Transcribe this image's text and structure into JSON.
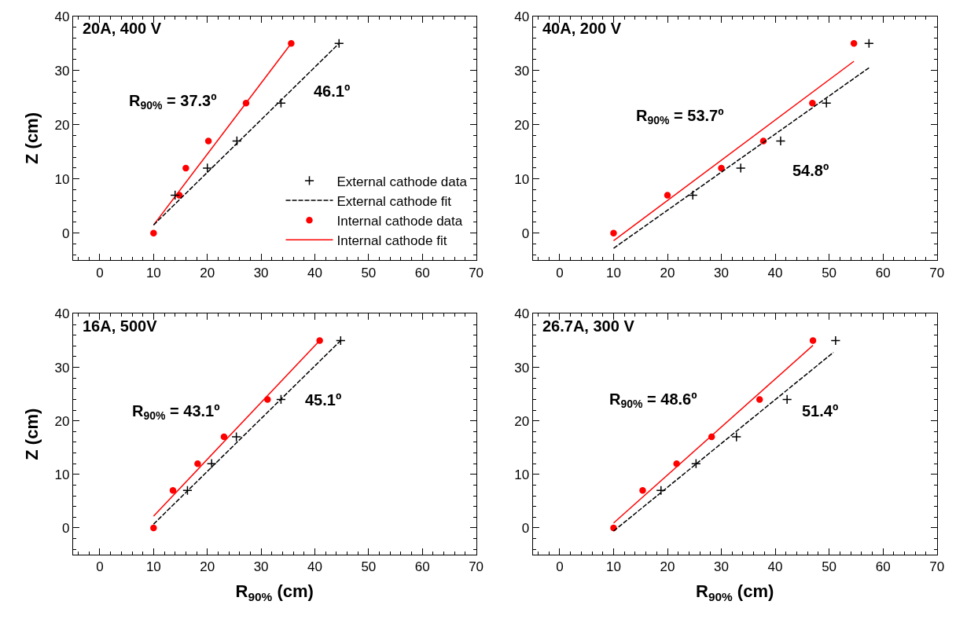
{
  "chart_data": [
    {
      "type": "scatter",
      "ylabel": "Z (cm)",
      "xlim": [
        -5,
        70
      ],
      "ylim": [
        -5,
        40
      ],
      "xticks": [
        0,
        10,
        20,
        30,
        40,
        50,
        60,
        70,
        {
          "value": -4,
          "label": null
        },
        {
          "value": -2,
          "label": null
        },
        {
          "value": 2,
          "label": null
        },
        {
          "value": 4,
          "label": null
        },
        {
          "value": 6,
          "label": null
        },
        {
          "value": 8,
          "label": null
        },
        {
          "value": 12,
          "label": null
        },
        {
          "value": 14,
          "label": null
        },
        {
          "value": 16,
          "label": null
        },
        {
          "value": 18,
          "label": null
        },
        {
          "value": 22,
          "label": null
        },
        {
          "value": 24,
          "label": null
        },
        {
          "value": 26,
          "label": null
        },
        {
          "value": 28,
          "label": null
        },
        {
          "value": 32,
          "label": null
        },
        {
          "value": 34,
          "label": null
        },
        {
          "value": 36,
          "label": null
        },
        {
          "value": 38,
          "label": null
        },
        {
          "value": 42,
          "label": null
        },
        {
          "value": 44,
          "label": null
        },
        {
          "value": 46,
          "label": null
        },
        {
          "value": 48,
          "label": null
        },
        {
          "value": 52,
          "label": null
        },
        {
          "value": 54,
          "label": null
        },
        {
          "value": 56,
          "label": null
        },
        {
          "value": 58,
          "label": null
        },
        {
          "value": 62,
          "label": null
        },
        {
          "value": 64,
          "label": null
        },
        {
          "value": 66,
          "label": null
        },
        {
          "value": 68,
          "label": null
        }
      ],
      "yticks": [
        0,
        10,
        20,
        30,
        40,
        {
          "value": -4,
          "label": null
        },
        {
          "value": -2,
          "label": null
        },
        {
          "value": 2,
          "label": null
        },
        {
          "value": 4,
          "label": null
        },
        {
          "value": 6,
          "label": null
        },
        {
          "value": 8,
          "label": null
        },
        {
          "value": 12,
          "label": null
        },
        {
          "value": 14,
          "label": null
        },
        {
          "value": 16,
          "label": null
        },
        {
          "value": 18,
          "label": null
        },
        {
          "value": 22,
          "label": null
        },
        {
          "value": 24,
          "label": null
        },
        {
          "value": 26,
          "label": null
        },
        {
          "value": 28,
          "label": null
        },
        {
          "value": 32,
          "label": null
        },
        {
          "value": 34,
          "label": null
        },
        {
          "value": 36,
          "label": null
        },
        {
          "value": 38,
          "label": null
        }
      ],
      "legend": "bottom right",
      "annotations": [
        "20A, 400 V",
        "R$_{90%}$ = 37.3º",
        "46.1º"
      ],
      "series": [
        {
          "name": "External cathode data",
          "marker": "cross",
          "color": "#000000",
          "x": [
            14,
            20,
            25.5,
            33.7,
            44.5
          ],
          "values": [
            7,
            12,
            17,
            24,
            35
          ]
        },
        {
          "name": "External cathode fit",
          "type": "line",
          "line_style": "dashed",
          "color": "#000000",
          "x": [
            10,
            44.5
          ],
          "values": [
            1.5,
            35
          ]
        },
        {
          "name": "Internal cathode data",
          "marker": "circle",
          "color": "#ff0000",
          "x": [
            10,
            14.8,
            16,
            20.2,
            27.2,
            35.6
          ],
          "values": [
            0,
            7,
            12,
            17,
            24,
            35
          ]
        },
        {
          "name": "Internal cathode fit",
          "type": "line",
          "line_style": "solid",
          "color": "#ff0000",
          "x": [
            10,
            35.6
          ],
          "values": [
            1.5,
            35
          ]
        }
      ]
    },
    {
      "type": "scatter",
      "xlim": [
        -5,
        70
      ],
      "ylim": [
        -5,
        40
      ],
      "xticks": [
        0,
        10,
        20,
        30,
        40,
        50,
        60,
        70,
        {
          "value": -4,
          "label": null
        },
        {
          "value": -2,
          "label": null
        },
        {
          "value": 2,
          "label": null
        },
        {
          "value": 4,
          "label": null
        },
        {
          "value": 6,
          "label": null
        },
        {
          "value": 8,
          "label": null
        },
        {
          "value": 12,
          "label": null
        },
        {
          "value": 14,
          "label": null
        },
        {
          "value": 16,
          "label": null
        },
        {
          "value": 18,
          "label": null
        },
        {
          "value": 22,
          "label": null
        },
        {
          "value": 24,
          "label": null
        },
        {
          "value": 26,
          "label": null
        },
        {
          "value": 28,
          "label": null
        },
        {
          "value": 32,
          "label": null
        },
        {
          "value": 34,
          "label": null
        },
        {
          "value": 36,
          "label": null
        },
        {
          "value": 38,
          "label": null
        },
        {
          "value": 42,
          "label": null
        },
        {
          "value": 44,
          "label": null
        },
        {
          "value": 46,
          "label": null
        },
        {
          "value": 48,
          "label": null
        },
        {
          "value": 52,
          "label": null
        },
        {
          "value": 54,
          "label": null
        },
        {
          "value": 56,
          "label": null
        },
        {
          "value": 58,
          "label": null
        },
        {
          "value": 62,
          "label": null
        },
        {
          "value": 64,
          "label": null
        },
        {
          "value": 66,
          "label": null
        },
        {
          "value": 68,
          "label": null
        }
      ],
      "yticks": [
        0,
        10,
        20,
        30,
        40,
        {
          "value": -4,
          "label": null
        },
        {
          "value": -2,
          "label": null
        },
        {
          "value": 2,
          "label": null
        },
        {
          "value": 4,
          "label": null
        },
        {
          "value": 6,
          "label": null
        },
        {
          "value": 8,
          "label": null
        },
        {
          "value": 12,
          "label": null
        },
        {
          "value": 14,
          "label": null
        },
        {
          "value": 16,
          "label": null
        },
        {
          "value": 18,
          "label": null
        },
        {
          "value": 22,
          "label": null
        },
        {
          "value": 24,
          "label": null
        },
        {
          "value": 26,
          "label": null
        },
        {
          "value": 28,
          "label": null
        },
        {
          "value": 32,
          "label": null
        },
        {
          "value": 34,
          "label": null
        },
        {
          "value": 36,
          "label": null
        },
        {
          "value": 38,
          "label": null
        }
      ],
      "annotations": [
        "40A, 200 V",
        "R$_{90%}$ = 53.7º",
        "54.8º"
      ],
      "series": [
        {
          "marker": "cross",
          "color": "#000000",
          "x": [
            24.7,
            33.6,
            41,
            49.5,
            57.4
          ],
          "values": [
            7,
            12,
            17,
            24,
            35
          ]
        },
        {
          "type": "line",
          "line_style": "dashed",
          "color": "#000000",
          "x": [
            10,
            57.4
          ],
          "values": [
            -2.8,
            30.5
          ]
        },
        {
          "marker": "circle",
          "color": "#ff0000",
          "x": [
            10,
            20,
            30,
            37.8,
            46.9,
            54.6
          ],
          "values": [
            0,
            7,
            12,
            17,
            24,
            35
          ]
        },
        {
          "type": "line",
          "line_style": "solid",
          "color": "#ff0000",
          "x": [
            10,
            54.6
          ],
          "values": [
            -1.4,
            31.7
          ]
        }
      ]
    },
    {
      "type": "scatter",
      "xlabel": "R$_{90%}$ (cm)",
      "ylabel": "Z (cm)",
      "xlim": [
        -5,
        70
      ],
      "ylim": [
        -5,
        40
      ],
      "xticks": [
        0,
        10,
        20,
        30,
        40,
        50,
        60,
        70,
        {
          "value": -4,
          "label": null
        },
        {
          "value": -2,
          "label": null
        },
        {
          "value": 2,
          "label": null
        },
        {
          "value": 4,
          "label": null
        },
        {
          "value": 6,
          "label": null
        },
        {
          "value": 8,
          "label": null
        },
        {
          "value": 12,
          "label": null
        },
        {
          "value": 14,
          "label": null
        },
        {
          "value": 16,
          "label": null
        },
        {
          "value": 18,
          "label": null
        },
        {
          "value": 22,
          "label": null
        },
        {
          "value": 24,
          "label": null
        },
        {
          "value": 26,
          "label": null
        },
        {
          "value": 28,
          "label": null
        },
        {
          "value": 32,
          "label": null
        },
        {
          "value": 34,
          "label": null
        },
        {
          "value": 36,
          "label": null
        },
        {
          "value": 38,
          "label": null
        },
        {
          "value": 42,
          "label": null
        },
        {
          "value": 44,
          "label": null
        },
        {
          "value": 46,
          "label": null
        },
        {
          "value": 48,
          "label": null
        },
        {
          "value": 52,
          "label": null
        },
        {
          "value": 54,
          "label": null
        },
        {
          "value": 56,
          "label": null
        },
        {
          "value": 58,
          "label": null
        },
        {
          "value": 62,
          "label": null
        },
        {
          "value": 64,
          "label": null
        },
        {
          "value": 66,
          "label": null
        },
        {
          "value": 68,
          "label": null
        }
      ],
      "yticks": [
        0,
        10,
        20,
        30,
        40,
        {
          "value": -4,
          "label": null
        },
        {
          "value": -2,
          "label": null
        },
        {
          "value": 2,
          "label": null
        },
        {
          "value": 4,
          "label": null
        },
        {
          "value": 6,
          "label": null
        },
        {
          "value": 8,
          "label": null
        },
        {
          "value": 12,
          "label": null
        },
        {
          "value": 14,
          "label": null
        },
        {
          "value": 16,
          "label": null
        },
        {
          "value": 18,
          "label": null
        },
        {
          "value": 22,
          "label": null
        },
        {
          "value": 24,
          "label": null
        },
        {
          "value": 26,
          "label": null
        },
        {
          "value": 28,
          "label": null
        },
        {
          "value": 32,
          "label": null
        },
        {
          "value": 34,
          "label": null
        },
        {
          "value": 36,
          "label": null
        },
        {
          "value": 38,
          "label": null
        }
      ],
      "annotations": [
        "16A, 500V",
        "R$_{90%}$ = 43.1º",
        "45.1º"
      ],
      "series": [
        {
          "marker": "cross",
          "color": "#000000",
          "x": [
            16.3,
            20.8,
            25.4,
            33.7,
            44.8
          ],
          "values": [
            7,
            12,
            17,
            24,
            35
          ]
        },
        {
          "type": "line",
          "line_style": "dashed",
          "color": "#000000",
          "x": [
            10,
            44.8
          ],
          "values": [
            0.7,
            35
          ]
        },
        {
          "marker": "circle",
          "color": "#ff0000",
          "x": [
            10,
            13.6,
            18.2,
            23.1,
            31.2,
            40.9
          ],
          "values": [
            0,
            7,
            12,
            17,
            24,
            35
          ]
        },
        {
          "type": "line",
          "line_style": "solid",
          "color": "#ff0000",
          "x": [
            10,
            40.9
          ],
          "values": [
            2.2,
            35
          ]
        }
      ]
    },
    {
      "type": "scatter",
      "xlabel": "R$_{90%}$ (cm)",
      "xlim": [
        -5,
        70
      ],
      "ylim": [
        -5,
        40
      ],
      "xticks": [
        0,
        10,
        20,
        30,
        40,
        50,
        60,
        70,
        {
          "value": -4,
          "label": null
        },
        {
          "value": -2,
          "label": null
        },
        {
          "value": 2,
          "label": null
        },
        {
          "value": 4,
          "label": null
        },
        {
          "value": 6,
          "label": null
        },
        {
          "value": 8,
          "label": null
        },
        {
          "value": 12,
          "label": null
        },
        {
          "value": 14,
          "label": null
        },
        {
          "value": 16,
          "label": null
        },
        {
          "value": 18,
          "label": null
        },
        {
          "value": 22,
          "label": null
        },
        {
          "value": 24,
          "label": null
        },
        {
          "value": 26,
          "label": null
        },
        {
          "value": 28,
          "label": null
        },
        {
          "value": 32,
          "label": null
        },
        {
          "value": 34,
          "label": null
        },
        {
          "value": 36,
          "label": null
        },
        {
          "value": 38,
          "label": null
        },
        {
          "value": 42,
          "label": null
        },
        {
          "value": 44,
          "label": null
        },
        {
          "value": 46,
          "label": null
        },
        {
          "value": 48,
          "label": null
        },
        {
          "value": 52,
          "label": null
        },
        {
          "value": 54,
          "label": null
        },
        {
          "value": 56,
          "label": null
        },
        {
          "value": 58,
          "label": null
        },
        {
          "value": 62,
          "label": null
        },
        {
          "value": 64,
          "label": null
        },
        {
          "value": 66,
          "label": null
        },
        {
          "value": 68,
          "label": null
        }
      ],
      "yticks": [
        0,
        10,
        20,
        30,
        40,
        {
          "value": -4,
          "label": null
        },
        {
          "value": -2,
          "label": null
        },
        {
          "value": 2,
          "label": null
        },
        {
          "value": 4,
          "label": null
        },
        {
          "value": 6,
          "label": null
        },
        {
          "value": 8,
          "label": null
        },
        {
          "value": 12,
          "label": null
        },
        {
          "value": 14,
          "label": null
        },
        {
          "value": 16,
          "label": null
        },
        {
          "value": 18,
          "label": null
        },
        {
          "value": 22,
          "label": null
        },
        {
          "value": 24,
          "label": null
        },
        {
          "value": 26,
          "label": null
        },
        {
          "value": 28,
          "label": null
        },
        {
          "value": 32,
          "label": null
        },
        {
          "value": 34,
          "label": null
        },
        {
          "value": 36,
          "label": null
        },
        {
          "value": 38,
          "label": null
        }
      ],
      "annotations": [
        "26.7A, 300 V",
        "R$_{90%}$ = 48.6º",
        "51.4º"
      ],
      "series": [
        {
          "marker": "cross",
          "color": "#000000",
          "x": [
            18.8,
            25.3,
            32.8,
            42.2,
            51.2
          ],
          "values": [
            7,
            12,
            17,
            24,
            35
          ]
        },
        {
          "type": "line",
          "line_style": "dashed",
          "color": "#000000",
          "x": [
            10,
            50.8
          ],
          "values": [
            -0.6,
            32.8
          ]
        },
        {
          "marker": "circle",
          "color": "#ff0000",
          "x": [
            10,
            15.4,
            21.7,
            28.2,
            37.1,
            47
          ],
          "values": [
            0,
            7,
            12,
            17,
            24,
            35
          ]
        },
        {
          "type": "line",
          "line_style": "solid",
          "color": "#ff0000",
          "x": [
            10,
            47
          ],
          "values": [
            0.9,
            34.1
          ]
        }
      ]
    }
  ]
}
